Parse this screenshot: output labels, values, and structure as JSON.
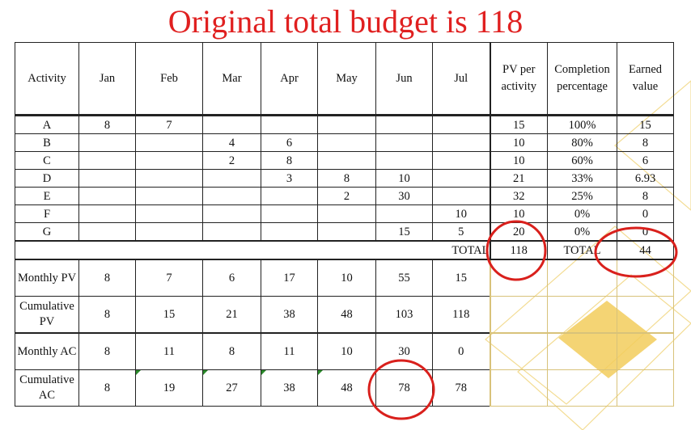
{
  "title": "Original total budget is 118",
  "colors": {
    "title": "#e02020",
    "circle": "#d9201c",
    "diamond": "#f2cc5c"
  },
  "header": [
    "Activity",
    "Jan",
    "Feb",
    "Mar",
    "Apr",
    "May",
    "Jun",
    "Jul",
    "PV per activity",
    "Completion percentage",
    "Earned value"
  ],
  "activities": [
    {
      "name": "A",
      "months": [
        "8",
        "7",
        "",
        "",
        "",
        "",
        ""
      ],
      "pv": "15",
      "pct": "100%",
      "ev": "15"
    },
    {
      "name": "B",
      "months": [
        "",
        "",
        "4",
        "6",
        "",
        "",
        ""
      ],
      "pv": "10",
      "pct": "80%",
      "ev": "8"
    },
    {
      "name": "C",
      "months": [
        "",
        "",
        "2",
        "8",
        "",
        "",
        ""
      ],
      "pv": "10",
      "pct": "60%",
      "ev": "6"
    },
    {
      "name": "D",
      "months": [
        "",
        "",
        "",
        "3",
        "8",
        "10",
        ""
      ],
      "pv": "21",
      "pct": "33%",
      "ev": "6.93"
    },
    {
      "name": "E",
      "months": [
        "",
        "",
        "",
        "",
        "2",
        "30",
        ""
      ],
      "pv": "32",
      "pct": "25%",
      "ev": "8"
    },
    {
      "name": "F",
      "months": [
        "",
        "",
        "",
        "",
        "",
        "",
        "10"
      ],
      "pv": "10",
      "pct": "0%",
      "ev": "0"
    },
    {
      "name": "G",
      "months": [
        "",
        "",
        "",
        "",
        "",
        "15",
        "5"
      ],
      "pv": "20",
      "pct": "0%",
      "ev": "0"
    }
  ],
  "totals": {
    "label1": "TOTAL",
    "pv": "118",
    "label2": "TOTAL",
    "ev": "44"
  },
  "summary": [
    {
      "label": "Monthly PV",
      "values": [
        "8",
        "7",
        "6",
        "17",
        "10",
        "55",
        "15"
      ]
    },
    {
      "label": "Cumulative PV",
      "values": [
        "8",
        "15",
        "21",
        "38",
        "48",
        "103",
        "118"
      ]
    },
    {
      "label": "Monthly AC",
      "values": [
        "8",
        "11",
        "8",
        "11",
        "10",
        "30",
        "0"
      ]
    },
    {
      "label": "Cumulative AC",
      "values": [
        "8",
        "19",
        "27",
        "38",
        "48",
        "78",
        "78"
      ]
    }
  ]
}
